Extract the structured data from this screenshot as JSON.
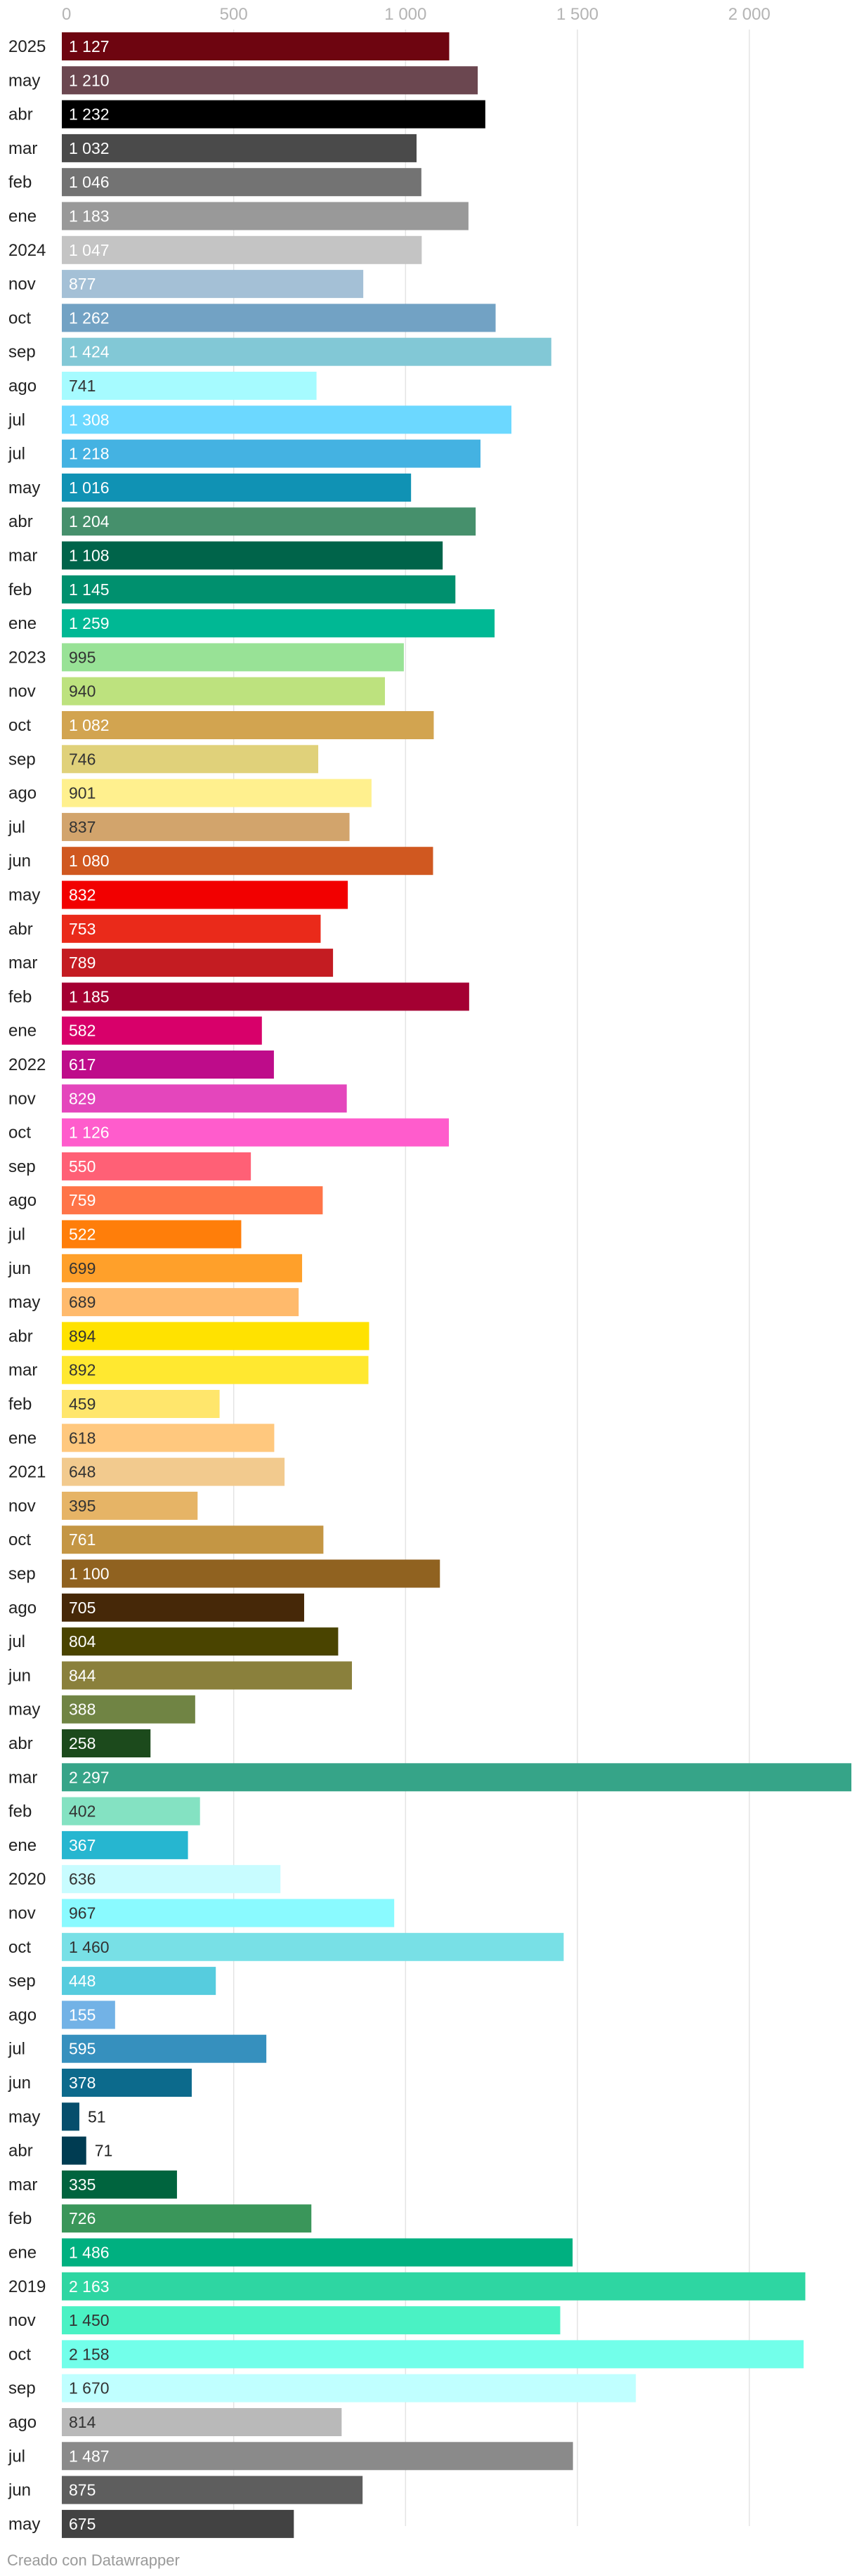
{
  "chart_data": {
    "type": "bar",
    "orientation": "horizontal",
    "xlim": [
      0,
      2297
    ],
    "x_ticks": [
      {
        "value": 0,
        "label": "0"
      },
      {
        "value": 500,
        "label": "500"
      },
      {
        "value": 1000,
        "label": "1 000"
      },
      {
        "value": 1500,
        "label": "1 500"
      },
      {
        "value": 2000,
        "label": "2 000"
      }
    ],
    "grid": true,
    "categories": [
      "2025",
      "may",
      "abr",
      "mar",
      "feb",
      "ene",
      "2024",
      "nov",
      "oct",
      "sep",
      "ago",
      "jul",
      "jul",
      "may",
      "abr",
      "mar",
      "feb",
      "ene",
      "2023",
      "nov",
      "oct",
      "sep",
      "ago",
      "jul",
      "jun",
      "may",
      "abr",
      "mar",
      "feb",
      "ene",
      "2022",
      "nov",
      "oct",
      "sep",
      "ago",
      "jul",
      "jun",
      "may",
      "abr",
      "mar",
      "feb",
      "ene",
      "2021",
      "nov",
      "oct",
      "sep",
      "ago",
      "jul",
      "jun",
      "may",
      "abr",
      "mar",
      "feb",
      "ene",
      "2020",
      "nov",
      "oct",
      "sep",
      "ago",
      "jul",
      "jun",
      "may",
      "abr",
      "mar",
      "feb",
      "ene",
      "2019",
      "nov",
      "oct",
      "sep",
      "ago",
      "jul",
      "jun",
      "may"
    ],
    "values": [
      1127,
      1210,
      1232,
      1032,
      1046,
      1183,
      1047,
      877,
      1262,
      1424,
      741,
      1308,
      1218,
      1016,
      1204,
      1108,
      1145,
      1259,
      995,
      940,
      1082,
      746,
      901,
      837,
      1080,
      832,
      753,
      789,
      1185,
      582,
      617,
      829,
      1126,
      550,
      759,
      522,
      699,
      689,
      894,
      892,
      459,
      618,
      648,
      395,
      761,
      1100,
      705,
      804,
      844,
      388,
      258,
      2297,
      402,
      367,
      636,
      967,
      1460,
      448,
      155,
      595,
      378,
      51,
      71,
      335,
      726,
      1486,
      2163,
      1450,
      2158,
      1670,
      814,
      1487,
      875,
      675
    ],
    "value_labels": [
      "1 127",
      "1 210",
      "1 232",
      "1 032",
      "1 046",
      "1 183",
      "1 047",
      "877",
      "1 262",
      "1 424",
      "741",
      "1 308",
      "1 218",
      "1 016",
      "1 204",
      "1 108",
      "1 145",
      "1 259",
      "995",
      "940",
      "1 082",
      "746",
      "901",
      "837",
      "1 080",
      "832",
      "753",
      "789",
      "1 185",
      "582",
      "617",
      "829",
      "1 126",
      "550",
      "759",
      "522",
      "699",
      "689",
      "894",
      "892",
      "459",
      "618",
      "648",
      "395",
      "761",
      "1 100",
      "705",
      "804",
      "844",
      "388",
      "258",
      "2 297",
      "402",
      "367",
      "636",
      "967",
      "1 460",
      "448",
      "155",
      "595",
      "378",
      "51",
      "71",
      "335",
      "726",
      "1 486",
      "2 163",
      "1 450",
      "2 158",
      "1 670",
      "814",
      "1 487",
      "875",
      "675"
    ],
    "colors": [
      "#6e0510",
      "#6b4750",
      "#000000",
      "#4a4a4a",
      "#737373",
      "#999999",
      "#c4c4c4",
      "#a4c0d6",
      "#72a2c4",
      "#82c8d6",
      "#a6fbff",
      "#6cd8ff",
      "#44b2e2",
      "#1092b4",
      "#46906c",
      "#00644a",
      "#00906e",
      "#00b894",
      "#98e296",
      "#bde27e",
      "#d2a450",
      "#e0d17a",
      "#fff08e",
      "#d2a46c",
      "#d05820",
      "#f20000",
      "#ea2a1a",
      "#c41c22",
      "#a40032",
      "#d8006a",
      "#be0c8a",
      "#e446bc",
      "#ff5ccc",
      "#ff6076",
      "#ff7448",
      "#ff7e0a",
      "#ffa02a",
      "#ffba6c",
      "#ffe200",
      "#ffe830",
      "#ffe66c",
      "#ffc87e",
      "#f2ca8e",
      "#e6b466",
      "#c49644",
      "#906220",
      "#462808",
      "#4a4400",
      "#8a803c",
      "#708444",
      "#1c4a1c",
      "#36a488",
      "#84e2c2",
      "#26b6d0",
      "#c8fcff",
      "#8afaff",
      "#78e0e6",
      "#56ccde",
      "#72b2e6",
      "#3690be",
      "#0c6a8c",
      "#064e6c",
      "#003c52",
      "#00643e",
      "#3a965a",
      "#00b080",
      "#2ed6a2",
      "#4af2c4",
      "#72ffea",
      "#c0ffff",
      "#b9b9b9",
      "#8a8a8a",
      "#5e5e5e",
      "#424242"
    ],
    "label_colors": [
      "#ffffff",
      "#ffffff",
      "#ffffff",
      "#ffffff",
      "#ffffff",
      "#ffffff",
      "#ffffff",
      "#ffffff",
      "#ffffff",
      "#ffffff",
      "#333333",
      "#ffffff",
      "#ffffff",
      "#ffffff",
      "#ffffff",
      "#ffffff",
      "#ffffff",
      "#ffffff",
      "#333333",
      "#333333",
      "#ffffff",
      "#333333",
      "#333333",
      "#333333",
      "#ffffff",
      "#ffffff",
      "#ffffff",
      "#ffffff",
      "#ffffff",
      "#ffffff",
      "#ffffff",
      "#ffffff",
      "#ffffff",
      "#ffffff",
      "#ffffff",
      "#ffffff",
      "#333333",
      "#333333",
      "#333333",
      "#333333",
      "#333333",
      "#333333",
      "#333333",
      "#333333",
      "#ffffff",
      "#ffffff",
      "#ffffff",
      "#ffffff",
      "#ffffff",
      "#ffffff",
      "#ffffff",
      "#ffffff",
      "#333333",
      "#ffffff",
      "#333333",
      "#333333",
      "#333333",
      "#ffffff",
      "#ffffff",
      "#ffffff",
      "#ffffff",
      "#222222",
      "#222222",
      "#ffffff",
      "#ffffff",
      "#ffffff",
      "#ffffff",
      "#333333",
      "#333333",
      "#333333",
      "#333333",
      "#ffffff",
      "#ffffff",
      "#ffffff"
    ],
    "credit": "Creado con Datawrapper"
  }
}
